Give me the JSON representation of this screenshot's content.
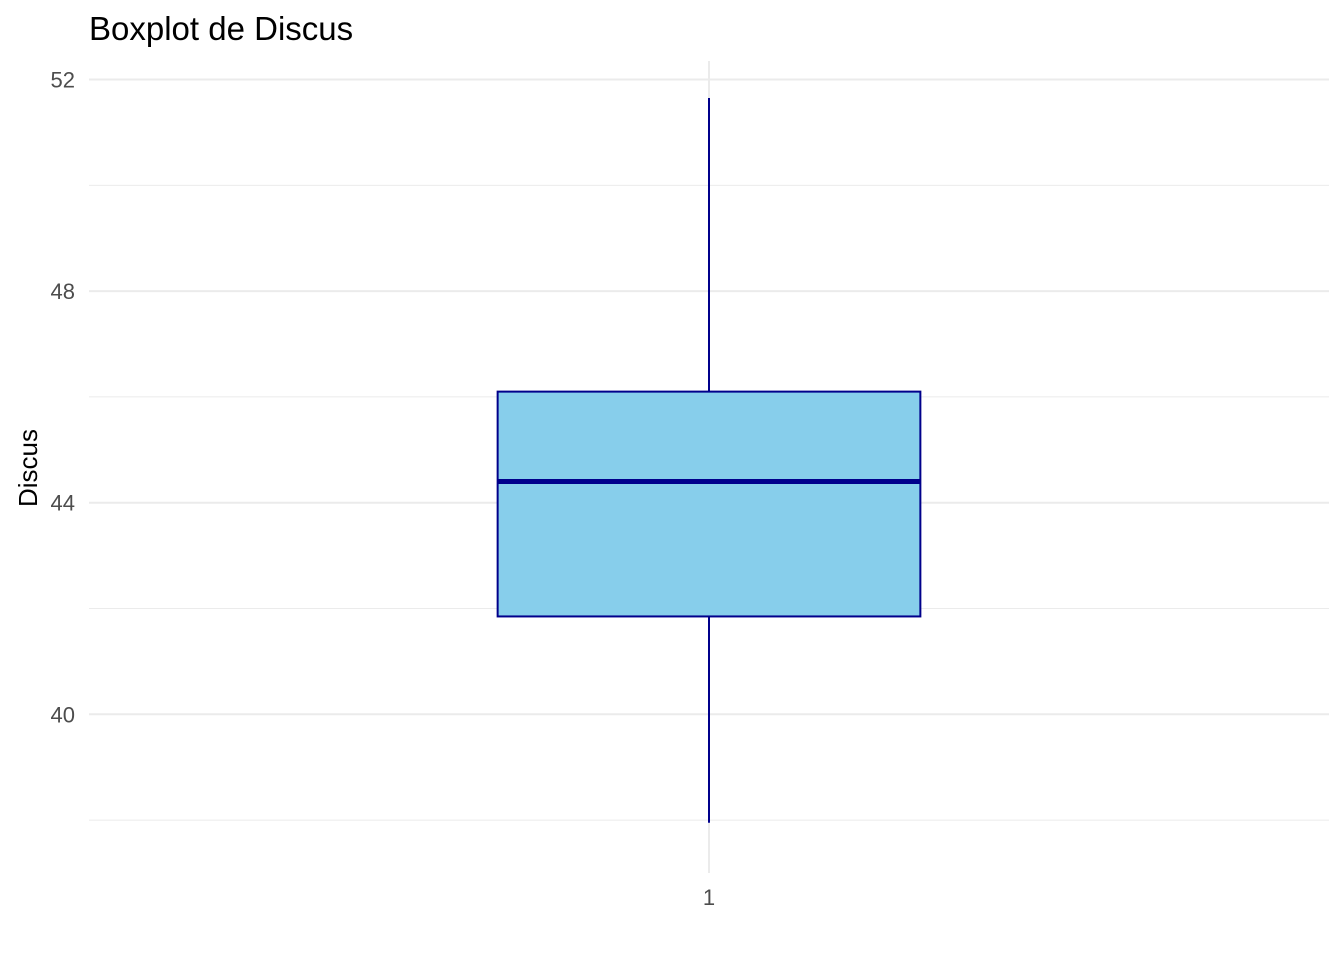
{
  "chart_data": {
    "type": "boxplot",
    "title": "Boxplot de Discus",
    "xlabel": "",
    "ylabel": "Discus",
    "categories": [
      "1"
    ],
    "boxes": [
      {
        "category": "1",
        "whisker_low": 37.95,
        "q1": 41.85,
        "median": 44.4,
        "q3": 46.1,
        "whisker_high": 51.65
      }
    ],
    "ylim": [
      37.0,
      52.35
    ],
    "yticks": [
      40,
      44,
      48,
      52
    ],
    "ytick_labels": [
      "40",
      "44",
      "48",
      "52"
    ],
    "grid": true,
    "fill_color": "#87CEEB",
    "line_color": "#00008B",
    "grid_color": "#EBEBEB"
  }
}
